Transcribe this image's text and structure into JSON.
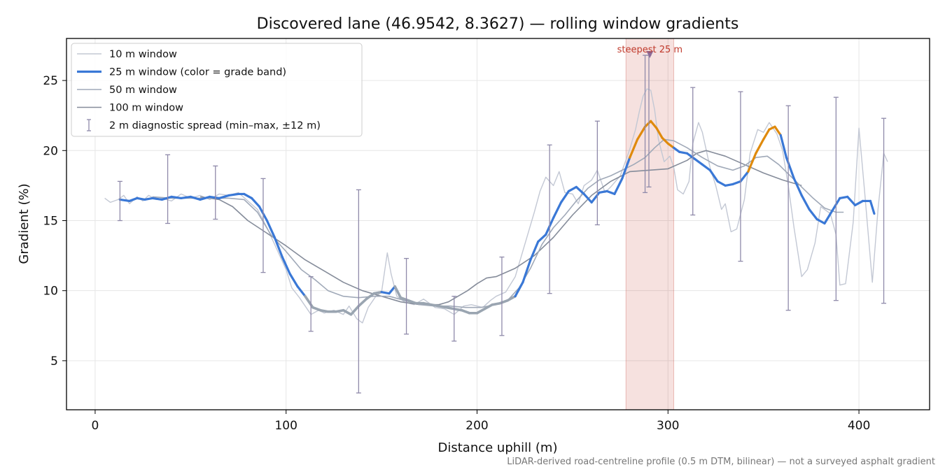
{
  "chart_data": {
    "type": "line",
    "title": "Discovered lane (46.9542, 8.3627) — rolling window gradients",
    "xlabel": "Distance uphill (m)",
    "ylabel": "Gradient (%)",
    "xlim": [
      -15,
      437
    ],
    "ylim": [
      1.5,
      28
    ],
    "x_ticks": [
      0,
      100,
      200,
      300,
      400
    ],
    "y_ticks": [
      5,
      10,
      15,
      20,
      25
    ],
    "grid": true,
    "legend_position": "top-left",
    "footnote": "LiDAR-derived road-centreline profile (0.5 m DTM, bilinear) — not a surveyed asphalt gradient",
    "highlight": {
      "label": "steepest 25 m",
      "x_start": 278,
      "x_end": 303,
      "marker_x": 290.5,
      "marker_y": 26.8,
      "color": "#c0392b"
    },
    "grade_band_colors": {
      "low": "#9aa5b1",
      "mid": "#3a78d6",
      "high": "#df8a0d"
    },
    "series": [
      {
        "name": "10 m window",
        "color": "#c3c8d4",
        "x": [
          5,
          8,
          12,
          15,
          18,
          22,
          25,
          28,
          32,
          35,
          40,
          45,
          50,
          55,
          60,
          65,
          70,
          75,
          80,
          85,
          90,
          95,
          100,
          103,
          107,
          110,
          113,
          117,
          120,
          125,
          130,
          133,
          137,
          140,
          143,
          147,
          150,
          153,
          155,
          158,
          162,
          167,
          172,
          178,
          183,
          188,
          193,
          197,
          203,
          207,
          210,
          215,
          220,
          225,
          230,
          233,
          236,
          240,
          243,
          246,
          250,
          253,
          256,
          260,
          263,
          267,
          270,
          275,
          280,
          283,
          285,
          287,
          289,
          291,
          293,
          295,
          298,
          301,
          303,
          305,
          308,
          311,
          313,
          316,
          318,
          322,
          325,
          328,
          330,
          333,
          336,
          340,
          343,
          347,
          350,
          353,
          357,
          360,
          363,
          366,
          370,
          373,
          377,
          380,
          385,
          388,
          390,
          393,
          397,
          400,
          403,
          407,
          410,
          413,
          415
        ],
        "y": [
          16.6,
          16.3,
          16.5,
          16.8,
          16.2,
          16.7,
          16.4,
          16.8,
          16.5,
          16.6,
          16.4,
          16.9,
          16.6,
          16.8,
          16.5,
          16.9,
          16.8,
          17.0,
          16.4,
          15.8,
          14.5,
          13.0,
          11.5,
          10.2,
          9.5,
          8.9,
          8.3,
          8.6,
          8.4,
          8.6,
          8.3,
          8.9,
          8.0,
          7.7,
          8.8,
          9.6,
          9.9,
          12.7,
          11.2,
          9.6,
          9.2,
          9.0,
          9.4,
          8.8,
          8.7,
          8.3,
          8.9,
          9.0,
          8.8,
          9.3,
          9.6,
          9.9,
          11.0,
          13.3,
          15.6,
          17.1,
          18.1,
          17.5,
          18.5,
          17.0,
          16.9,
          16.2,
          17.5,
          17.9,
          18.6,
          17.0,
          17.4,
          18.2,
          20.1,
          21.5,
          22.8,
          23.9,
          24.4,
          24.3,
          22.9,
          20.8,
          19.2,
          19.6,
          18.8,
          17.2,
          16.9,
          17.8,
          20.5,
          22.0,
          21.3,
          18.8,
          17.5,
          15.8,
          16.2,
          14.2,
          14.4,
          16.5,
          19.8,
          21.5,
          21.3,
          22.0,
          21.2,
          20.0,
          17.5,
          14.5,
          11.0,
          11.5,
          13.4,
          16.0,
          15.5,
          14.0,
          10.4,
          10.5,
          14.9,
          21.6,
          17.0,
          10.6,
          15.8,
          19.8,
          19.2
        ]
      },
      {
        "name": "25 m window (color = grade band)",
        "color": "#3a78d6",
        "x": [
          13,
          18,
          22,
          26,
          30,
          35,
          40,
          45,
          50,
          55,
          60,
          65,
          70,
          75,
          78,
          82,
          86,
          90,
          94,
          98,
          102,
          106,
          110,
          114,
          118,
          122,
          126,
          130,
          134,
          138,
          142,
          146,
          150,
          154,
          157,
          160,
          164,
          168,
          172,
          176,
          180,
          184,
          188,
          192,
          196,
          200,
          204,
          208,
          212,
          216,
          220,
          224,
          228,
          232,
          236,
          240,
          244,
          248,
          252,
          256,
          260,
          264,
          268,
          272,
          276,
          280,
          284,
          288,
          291,
          294,
          297,
          300,
          303,
          306,
          310,
          314,
          318,
          322,
          326,
          330,
          334,
          338,
          342,
          346,
          350,
          353,
          356,
          359,
          362,
          366,
          370,
          374,
          378,
          382,
          386,
          390,
          394,
          398,
          402,
          406,
          408
        ],
        "y": [
          16.5,
          16.4,
          16.6,
          16.5,
          16.6,
          16.5,
          16.7,
          16.6,
          16.7,
          16.5,
          16.7,
          16.6,
          16.8,
          16.9,
          16.9,
          16.6,
          16.0,
          15.0,
          13.8,
          12.4,
          11.2,
          10.3,
          9.6,
          8.8,
          8.6,
          8.5,
          8.5,
          8.6,
          8.3,
          8.9,
          9.4,
          9.8,
          9.9,
          9.8,
          10.3,
          9.5,
          9.3,
          9.1,
          9.1,
          9.0,
          8.9,
          8.8,
          8.7,
          8.6,
          8.4,
          8.4,
          8.7,
          9.0,
          9.1,
          9.3,
          9.6,
          10.6,
          12.2,
          13.5,
          14.0,
          15.2,
          16.3,
          17.1,
          17.4,
          16.9,
          16.3,
          17.0,
          17.1,
          16.9,
          18.0,
          19.5,
          20.8,
          21.7,
          22.1,
          21.6,
          20.9,
          20.5,
          20.2,
          19.9,
          19.8,
          19.4,
          19.0,
          18.6,
          17.8,
          17.5,
          17.6,
          17.8,
          18.5,
          19.8,
          20.8,
          21.5,
          21.7,
          21.1,
          19.5,
          18.0,
          16.8,
          15.8,
          15.1,
          14.8,
          15.7,
          16.6,
          16.7,
          16.1,
          16.4,
          16.4,
          15.5
        ],
        "band": [
          "mid",
          "mid",
          "mid",
          "mid",
          "mid",
          "mid",
          "mid",
          "mid",
          "mid",
          "mid",
          "mid",
          "mid",
          "mid",
          "mid",
          "mid",
          "mid",
          "mid",
          "mid",
          "mid",
          "mid",
          "mid",
          "mid",
          "mid",
          "low",
          "low",
          "low",
          "low",
          "low",
          "low",
          "low",
          "low",
          "low",
          "low",
          "mid",
          "mid",
          "low",
          "low",
          "low",
          "low",
          "low",
          "low",
          "low",
          "low",
          "low",
          "low",
          "low",
          "low",
          "low",
          "low",
          "low",
          "low",
          "mid",
          "mid",
          "mid",
          "mid",
          "mid",
          "mid",
          "mid",
          "mid",
          "mid",
          "mid",
          "mid",
          "mid",
          "mid",
          "mid",
          "mid",
          "high",
          "high",
          "high",
          "high",
          "high",
          "high",
          "high",
          "mid",
          "mid",
          "mid",
          "mid",
          "mid",
          "mid",
          "mid",
          "mid",
          "mid",
          "mid",
          "high",
          "high",
          "high",
          "high",
          "high",
          "mid",
          "mid",
          "mid",
          "mid",
          "mid",
          "mid",
          "mid",
          "mid",
          "mid",
          "mid",
          "mid",
          "mid",
          "mid"
        ]
      },
      {
        "name": "50 m window",
        "color": "#a0a9b8",
        "x": [
          30,
          40,
          50,
          60,
          70,
          78,
          85,
          92,
          100,
          108,
          115,
          122,
          130,
          138,
          146,
          154,
          162,
          170,
          178,
          186,
          194,
          202,
          210,
          216,
          222,
          228,
          234,
          240,
          246,
          252,
          258,
          264,
          270,
          276,
          282,
          288,
          293,
          298,
          303,
          310,
          318,
          326,
          334,
          340,
          346,
          352,
          358,
          364,
          370,
          376,
          382,
          388,
          392
        ],
        "y": [
          16.7,
          16.6,
          16.6,
          16.6,
          16.6,
          16.5,
          15.6,
          14.0,
          12.8,
          11.5,
          10.8,
          10.0,
          9.6,
          9.5,
          9.6,
          9.6,
          9.3,
          9.0,
          8.9,
          8.9,
          8.8,
          8.8,
          9.0,
          9.3,
          10.2,
          11.6,
          13.3,
          14.5,
          15.4,
          16.4,
          17.3,
          17.9,
          18.2,
          18.6,
          19.0,
          19.5,
          20.2,
          20.8,
          20.7,
          20.2,
          19.5,
          18.9,
          18.6,
          18.9,
          19.5,
          19.6,
          19.0,
          18.2,
          17.4,
          16.6,
          15.9,
          15.6,
          15.6
        ]
      },
      {
        "name": "100 m window",
        "color": "#858c9a",
        "x": [
          55,
          65,
          72,
          80,
          90,
          100,
          110,
          120,
          130,
          140,
          150,
          160,
          170,
          180,
          185,
          190,
          195,
          200,
          205,
          210,
          220,
          230,
          240,
          250,
          260,
          270,
          280,
          290,
          300,
          310,
          315,
          320,
          330,
          340,
          350,
          360,
          370
        ],
        "y": [
          16.7,
          16.5,
          16.0,
          15.0,
          14.1,
          13.2,
          12.2,
          11.4,
          10.6,
          10.0,
          9.6,
          9.2,
          9.0,
          9.0,
          9.2,
          9.6,
          10.0,
          10.5,
          10.9,
          11.0,
          11.6,
          12.5,
          13.8,
          15.4,
          16.8,
          17.8,
          18.5,
          18.6,
          18.7,
          19.3,
          19.8,
          20.0,
          19.6,
          19.0,
          18.4,
          17.9,
          17.5
        ]
      }
    ],
    "error_bars": {
      "name": "2 m diagnostic spread (min–max, ±12 m)",
      "color": "#8f8aaa",
      "x": [
        13,
        38,
        63,
        88,
        113,
        138,
        163,
        188,
        213,
        238,
        263,
        288,
        290,
        313,
        338,
        363,
        388,
        413
      ],
      "low": [
        15.0,
        14.8,
        15.1,
        11.3,
        7.1,
        2.7,
        6.9,
        6.4,
        6.8,
        9.8,
        14.7,
        17.0,
        17.4,
        15.4,
        12.1,
        8.6,
        9.3,
        9.1
      ],
      "high": [
        17.8,
        19.7,
        18.9,
        18.0,
        11.0,
        17.2,
        12.3,
        9.6,
        12.4,
        20.4,
        22.1,
        26.8,
        26.8,
        24.5,
        24.2,
        23.2,
        23.8,
        22.3
      ]
    }
  }
}
